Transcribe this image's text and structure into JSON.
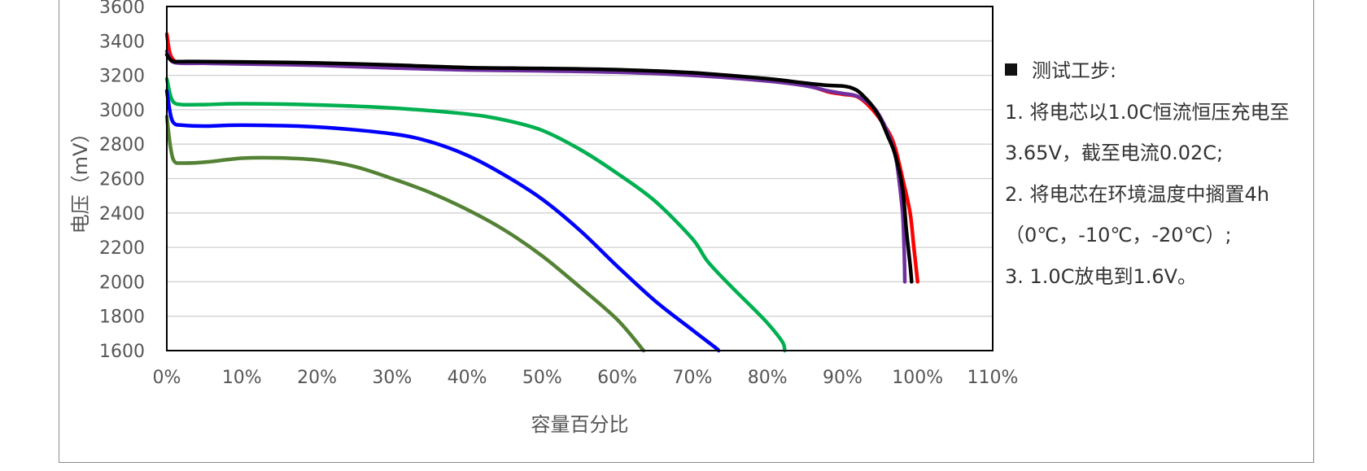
{
  "chart_data": {
    "type": "line",
    "xlabel": "容量百分比",
    "ylabel": "电压（mV）",
    "xlim": [
      0,
      110
    ],
    "ylim": [
      1600,
      3600
    ],
    "x_ticks": [
      0,
      10,
      20,
      30,
      40,
      50,
      60,
      70,
      80,
      90,
      100,
      110
    ],
    "x_tick_labels": [
      "0%",
      "10%",
      "20%",
      "30%",
      "40%",
      "50%",
      "60%",
      "70%",
      "80%",
      "90%",
      "100%",
      "110%"
    ],
    "y_ticks": [
      1600,
      1800,
      2000,
      2200,
      2400,
      2600,
      2800,
      3000,
      3200,
      3400,
      3600
    ],
    "y_tick_labels": [
      "1600",
      "1800",
      "2000",
      "2200",
      "2400",
      "2600",
      "2800",
      "3000",
      "3200",
      "3400",
      "3600"
    ],
    "grid": "horizontal",
    "legend": "none",
    "series": [
      {
        "color": "#ff0000",
        "x": [
          0,
          0.4,
          1,
          2,
          5,
          10,
          20,
          30,
          40,
          50,
          60,
          70,
          80,
          85,
          88,
          90,
          92,
          94,
          96,
          97,
          98,
          99,
          99.5,
          100
        ],
        "y": [
          3440,
          3330,
          3285,
          3275,
          3275,
          3273,
          3265,
          3250,
          3238,
          3232,
          3225,
          3205,
          3175,
          3145,
          3105,
          3090,
          3075,
          3000,
          2880,
          2780,
          2600,
          2400,
          2200,
          2000
        ]
      },
      {
        "color": "#7030a0",
        "x": [
          0,
          0.5,
          1,
          2,
          5,
          10,
          20,
          30,
          40,
          50,
          60,
          70,
          80,
          85,
          88,
          90,
          92,
          94,
          95,
          96,
          97,
          97.5,
          98,
          98.2,
          98.3
        ],
        "y": [
          3340,
          3290,
          3275,
          3270,
          3270,
          3266,
          3258,
          3243,
          3231,
          3226,
          3218,
          3200,
          3167,
          3140,
          3110,
          3095,
          3078,
          3020,
          2960,
          2870,
          2740,
          2600,
          2400,
          2200,
          2000
        ]
      },
      {
        "color": "#000000",
        "x": [
          0,
          0.5,
          1,
          2,
          5,
          10,
          20,
          30,
          40,
          50,
          60,
          70,
          80,
          85,
          88,
          90,
          91,
          92,
          93,
          94,
          95,
          96,
          97,
          98,
          98.5,
          99,
          99.2
        ],
        "y": [
          3320,
          3290,
          3280,
          3280,
          3280,
          3278,
          3272,
          3260,
          3245,
          3240,
          3233,
          3215,
          3180,
          3155,
          3142,
          3138,
          3130,
          3110,
          3070,
          3020,
          2950,
          2850,
          2740,
          2540,
          2300,
          2100,
          2000
        ]
      },
      {
        "color": "#00b050",
        "x": [
          0,
          0.5,
          1,
          2,
          5,
          10,
          20,
          30,
          40,
          45,
          50,
          55,
          60,
          65,
          70,
          72,
          75,
          78,
          80,
          82,
          82.3
        ],
        "y": [
          3180,
          3080,
          3040,
          3030,
          3030,
          3035,
          3028,
          3010,
          2975,
          2940,
          2880,
          2770,
          2630,
          2470,
          2250,
          2120,
          1980,
          1850,
          1760,
          1650,
          1600
        ]
      },
      {
        "color": "#0000ff",
        "x": [
          0,
          0.5,
          1,
          2,
          5,
          10,
          20,
          30,
          35,
          40,
          45,
          50,
          55,
          60,
          65,
          70,
          73,
          73.5
        ],
        "y": [
          3110,
          2970,
          2920,
          2910,
          2905,
          2910,
          2900,
          2860,
          2815,
          2735,
          2620,
          2480,
          2300,
          2090,
          1890,
          1720,
          1620,
          1600
        ]
      },
      {
        "color": "#548235",
        "x": [
          0,
          0.5,
          1,
          2,
          5,
          10,
          15,
          20,
          25,
          30,
          35,
          40,
          45,
          50,
          55,
          60,
          63.5
        ],
        "y": [
          2960,
          2780,
          2700,
          2690,
          2695,
          2718,
          2720,
          2708,
          2670,
          2600,
          2520,
          2420,
          2300,
          2150,
          1970,
          1780,
          1600
        ]
      }
    ]
  },
  "notes": {
    "heading": "测试工步:",
    "line1": "1. 将电芯以1.0C恒流恒压充电至",
    "line2": "3.65V，截至电流0.02C;",
    "line3": "2. 将电芯在环境温度中搁置4h",
    "line4": "（0℃，-10℃，-20℃）;",
    "line5": "3. 1.0C放电到1.6V。"
  }
}
